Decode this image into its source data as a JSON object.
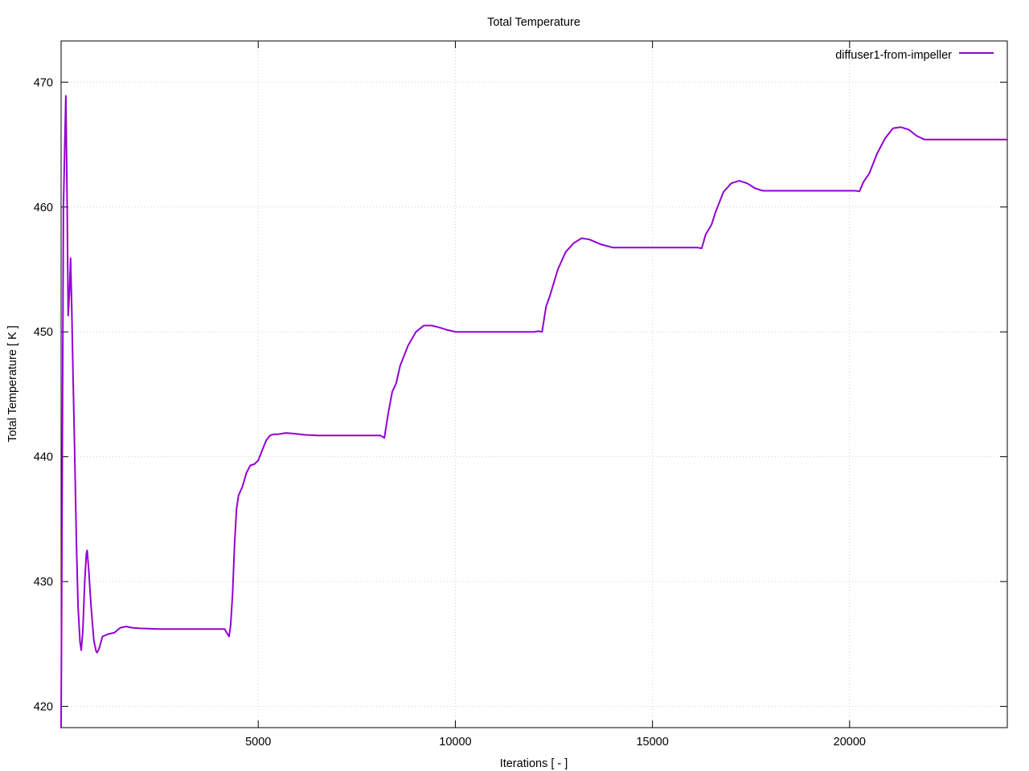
{
  "chart_data": {
    "type": "line",
    "title": "Total Temperature",
    "xlabel": "Iterations [ - ]",
    "ylabel": "Total Temperature [ K ]",
    "xlim": [
      0,
      24000
    ],
    "ylim": [
      418.3,
      473.3
    ],
    "xticks": [
      5000,
      10000,
      15000,
      20000
    ],
    "yticks": [
      420,
      430,
      440,
      450,
      460,
      470
    ],
    "grid": true,
    "legend": "top-right",
    "series": [
      {
        "name": "diffuser1-from-impeller",
        "color": "#9400d3",
        "points": [
          [
            0,
            418.3
          ],
          [
            60,
            460
          ],
          [
            100,
            466
          ],
          [
            120,
            468.9
          ],
          [
            150,
            461
          ],
          [
            180,
            451.3
          ],
          [
            210,
            453
          ],
          [
            240,
            455.9
          ],
          [
            270,
            452
          ],
          [
            300,
            447
          ],
          [
            340,
            441
          ],
          [
            390,
            433
          ],
          [
            430,
            428
          ],
          [
            480,
            425.2
          ],
          [
            510,
            424.5
          ],
          [
            550,
            426
          ],
          [
            600,
            430
          ],
          [
            640,
            432.2
          ],
          [
            660,
            432.5
          ],
          [
            700,
            431
          ],
          [
            760,
            428
          ],
          [
            830,
            425.3
          ],
          [
            880,
            424.5
          ],
          [
            910,
            424.3
          ],
          [
            960,
            424.6
          ],
          [
            1050,
            425.6
          ],
          [
            1200,
            425.8
          ],
          [
            1350,
            425.9
          ],
          [
            1500,
            426.3
          ],
          [
            1650,
            426.4
          ],
          [
            1800,
            426.3
          ],
          [
            2000,
            426.25
          ],
          [
            2500,
            426.2
          ],
          [
            3000,
            426.2
          ],
          [
            3500,
            426.2
          ],
          [
            4000,
            426.2
          ],
          [
            4150,
            426.2
          ],
          [
            4200,
            425.9
          ],
          [
            4260,
            425.6
          ],
          [
            4300,
            426.5
          ],
          [
            4350,
            429
          ],
          [
            4400,
            433
          ],
          [
            4450,
            435.8
          ],
          [
            4500,
            436.9
          ],
          [
            4600,
            437.6
          ],
          [
            4700,
            438.7
          ],
          [
            4800,
            439.3
          ],
          [
            4900,
            439.4
          ],
          [
            5000,
            439.7
          ],
          [
            5100,
            440.5
          ],
          [
            5200,
            441.3
          ],
          [
            5300,
            441.7
          ],
          [
            5400,
            441.8
          ],
          [
            5500,
            441.8
          ],
          [
            5700,
            441.9
          ],
          [
            5900,
            441.85
          ],
          [
            6200,
            441.75
          ],
          [
            6500,
            441.7
          ],
          [
            7000,
            441.7
          ],
          [
            7500,
            441.7
          ],
          [
            8000,
            441.7
          ],
          [
            8100,
            441.7
          ],
          [
            8200,
            441.5
          ],
          [
            8300,
            443.5
          ],
          [
            8400,
            445.2
          ],
          [
            8500,
            445.9
          ],
          [
            8600,
            447.3
          ],
          [
            8800,
            448.9
          ],
          [
            9000,
            450.0
          ],
          [
            9200,
            450.5
          ],
          [
            9400,
            450.5
          ],
          [
            9600,
            450.35
          ],
          [
            9800,
            450.15
          ],
          [
            10000,
            450.0
          ],
          [
            10500,
            450.0
          ],
          [
            11000,
            450.0
          ],
          [
            11500,
            450.0
          ],
          [
            12000,
            450.0
          ],
          [
            12100,
            450.05
          ],
          [
            12200,
            450.0
          ],
          [
            12300,
            452
          ],
          [
            12400,
            452.9
          ],
          [
            12600,
            455
          ],
          [
            12800,
            456.4
          ],
          [
            13000,
            457.1
          ],
          [
            13200,
            457.5
          ],
          [
            13400,
            457.4
          ],
          [
            13700,
            457.0
          ],
          [
            14000,
            456.75
          ],
          [
            14500,
            456.75
          ],
          [
            15000,
            456.75
          ],
          [
            15500,
            456.75
          ],
          [
            16000,
            456.75
          ],
          [
            16150,
            456.75
          ],
          [
            16250,
            456.7
          ],
          [
            16350,
            457.8
          ],
          [
            16500,
            458.6
          ],
          [
            16600,
            459.6
          ],
          [
            16800,
            461.2
          ],
          [
            17000,
            461.9
          ],
          [
            17200,
            462.1
          ],
          [
            17400,
            461.9
          ],
          [
            17600,
            461.5
          ],
          [
            17800,
            461.3
          ],
          [
            18500,
            461.3
          ],
          [
            19000,
            461.3
          ],
          [
            19500,
            461.3
          ],
          [
            20000,
            461.3
          ],
          [
            20150,
            461.3
          ],
          [
            20250,
            461.25
          ],
          [
            20350,
            462
          ],
          [
            20500,
            462.7
          ],
          [
            20700,
            464.3
          ],
          [
            20900,
            465.5
          ],
          [
            21100,
            466.3
          ],
          [
            21300,
            466.4
          ],
          [
            21500,
            466.2
          ],
          [
            21700,
            465.7
          ],
          [
            21900,
            465.4
          ],
          [
            22500,
            465.4
          ],
          [
            23000,
            465.4
          ],
          [
            23500,
            465.4
          ],
          [
            24000,
            465.4
          ]
        ]
      }
    ]
  }
}
